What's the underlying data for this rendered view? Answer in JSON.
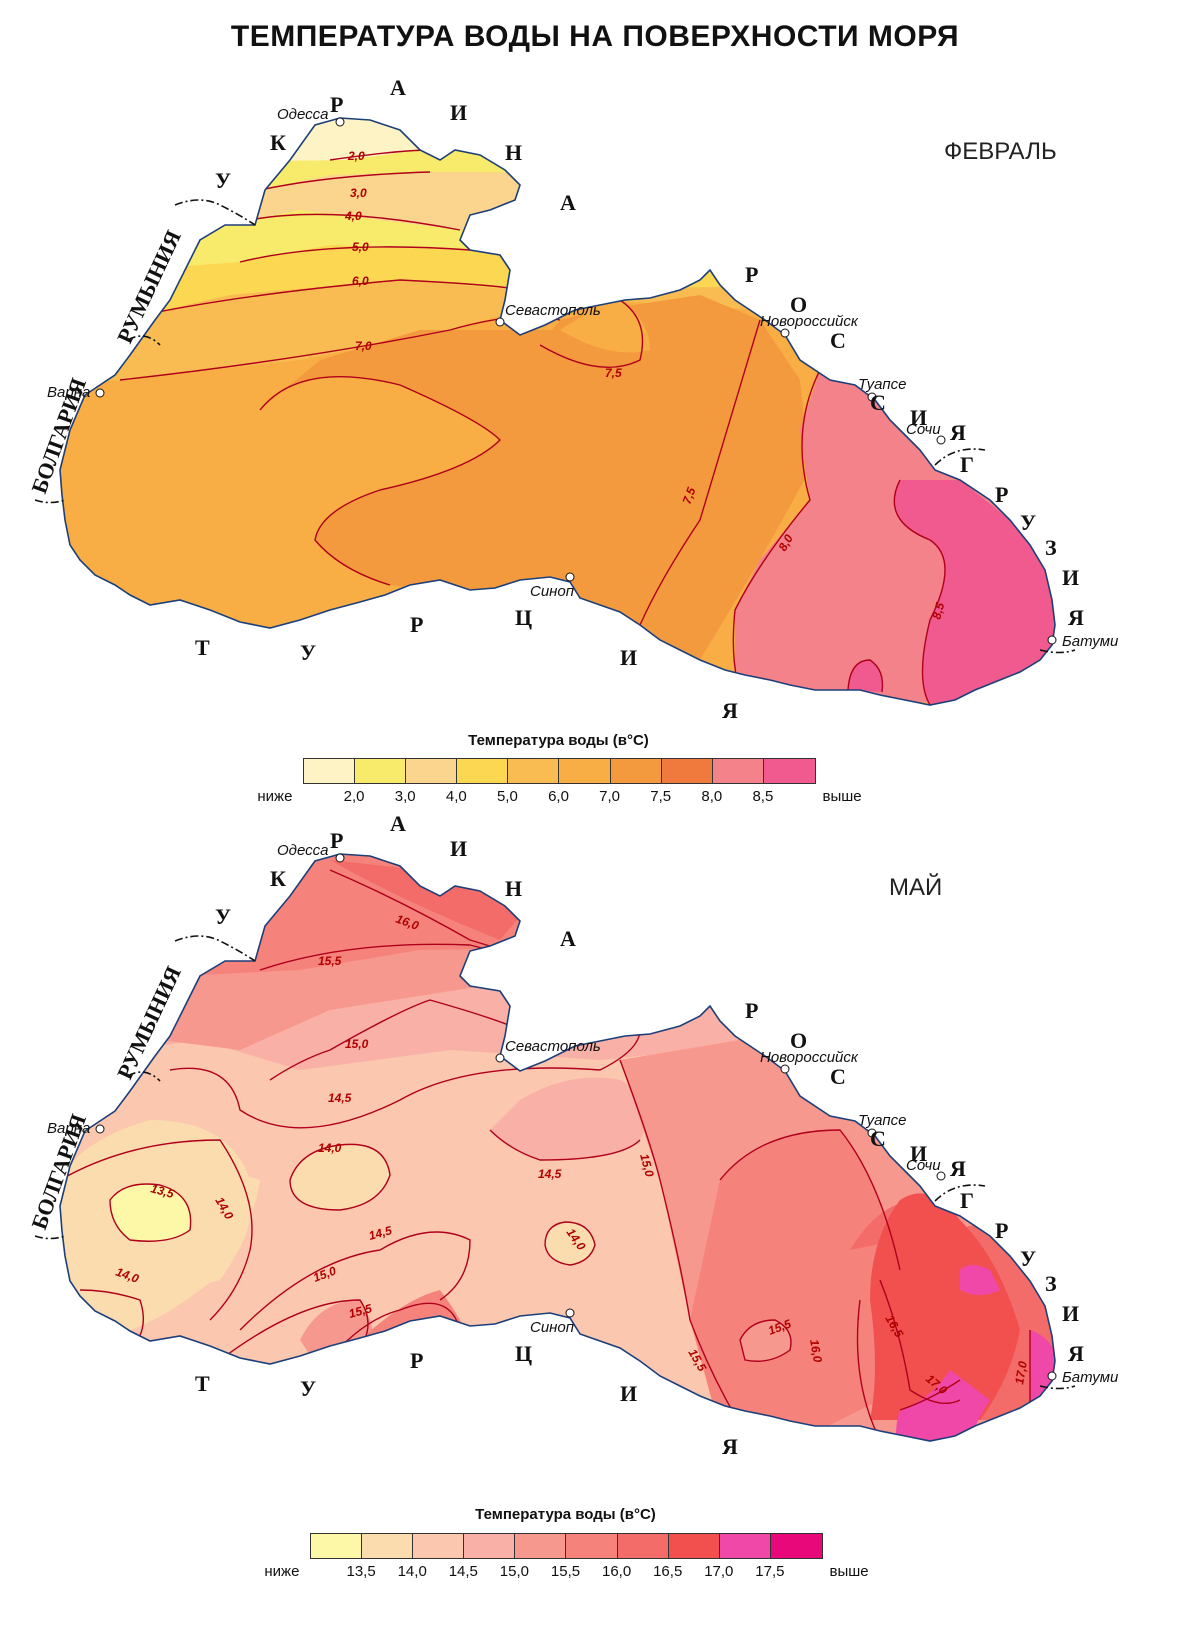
{
  "title": "ТЕМПЕРАТУРА ВОДЫ НА ПОВЕРХНОСТИ МОРЯ",
  "maps": [
    {
      "month": "ФЕВРАЛЬ",
      "legend_title": "Температура воды (в°C)",
      "legend_labels": [
        "ниже",
        "2,0",
        "3,0",
        "4,0",
        "5,0",
        "6,0",
        "7,0",
        "7,5",
        "8,0",
        "8,5",
        "выше"
      ],
      "legend_colors": [
        "#fdf3c4",
        "#f8ea6a",
        "#fbd58d",
        "#fbd752",
        "#f9bc52",
        "#f8ae45",
        "#f49a3e",
        "#f07a3e",
        "#f4828a",
        "#f05a8e"
      ],
      "isolines": [
        "2,0",
        "3,0",
        "4,0",
        "5,0",
        "6,0",
        "7,0",
        "7,5",
        "7,5",
        "8,0",
        "8,5"
      ]
    },
    {
      "month": "МАЙ",
      "legend_title": "Температура воды (в°C)",
      "legend_labels": [
        "ниже",
        "13,5",
        "14,0",
        "14,5",
        "15,0",
        "15,5",
        "16,0",
        "16,5",
        "17,0",
        "17,5",
        "выше"
      ],
      "legend_colors": [
        "#fdf7a8",
        "#fbdcae",
        "#fbc7ae",
        "#f9b0a6",
        "#f7988f",
        "#f5837c",
        "#f36c6a",
        "#f1504f",
        "#f048a8",
        "#e8087a"
      ],
      "isolines": [
        "16,0",
        "15,5",
        "15,0",
        "14,5",
        "14,0",
        "13,5",
        "14,0",
        "14,0",
        "14,5",
        "14,0",
        "14,5",
        "15,0",
        "15,5",
        "15,0",
        "15,5",
        "15,5",
        "16,0",
        "16,5",
        "17,0",
        "17,0"
      ]
    }
  ],
  "countries": {
    "ukraine": [
      "У",
      "К",
      "Р",
      "А",
      "И",
      "Н",
      "А"
    ],
    "romania": "РУМЫНИЯ",
    "bulgaria": "БОЛГАРИЯ",
    "russia": [
      "Р",
      "О",
      "С",
      "С",
      "И",
      "Я"
    ],
    "georgia": [
      "Г",
      "Р",
      "У",
      "З",
      "И",
      "Я"
    ],
    "turkey": [
      "Т",
      "У",
      "Р",
      "Ц",
      "И",
      "Я"
    ]
  },
  "cities": [
    "Одесса",
    "Севастополь",
    "Новороссийск",
    "Туапсе",
    "Сочи",
    "Батуми",
    "Синоп",
    "Варна"
  ]
}
